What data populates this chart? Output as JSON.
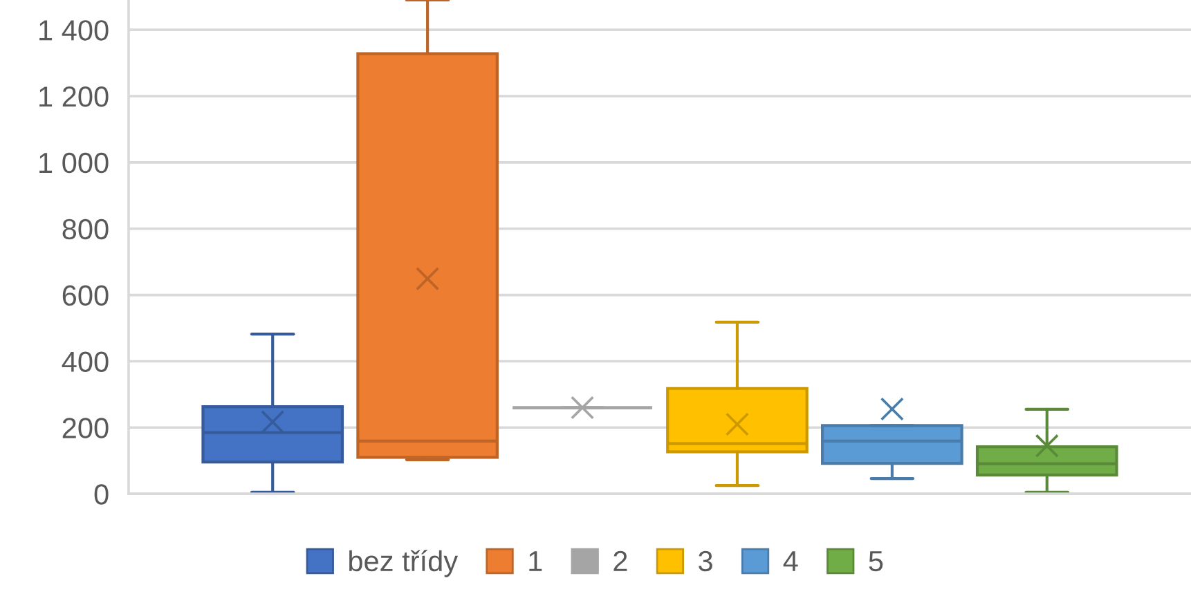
{
  "chart_data": {
    "type": "box",
    "categories": [
      null
    ],
    "series": [
      {
        "name": "bez třídy",
        "color": "#4472c4",
        "boxes": [
          {
            "low": 5,
            "q1": 96,
            "median": 185,
            "q3": 263,
            "high": 482,
            "mean": 217
          }
        ]
      },
      {
        "name": "1",
        "color": "#ed7d31",
        "boxes": [
          {
            "low": 103,
            "q1": 110,
            "median": 159,
            "q3": 1328,
            "high": 1490,
            "mean": 649
          }
        ]
      },
      {
        "name": "2",
        "color": "#a5a5a5",
        "boxes": [
          {
            "low": 260,
            "q1": 260,
            "median": 260,
            "q3": 260,
            "high": 260,
            "mean": 260
          }
        ]
      },
      {
        "name": "3",
        "color": "#ffc000",
        "boxes": [
          {
            "low": 25,
            "q1": 127,
            "median": 152,
            "q3": 318,
            "high": 518,
            "mean": 210
          }
        ]
      },
      {
        "name": "4",
        "color": "#5b9bd5",
        "boxes": [
          {
            "low": 46,
            "q1": 92,
            "median": 159,
            "q3": 206,
            "high": 206,
            "mean": 256
          }
        ]
      },
      {
        "name": "5",
        "color": "#70ad47",
        "boxes": [
          {
            "low": 5,
            "q1": 57,
            "median": 91,
            "q3": 142,
            "high": 255,
            "mean": 145
          }
        ]
      }
    ],
    "ylim": [
      0,
      1490
    ],
    "yticks": [
      0,
      200,
      400,
      600,
      800,
      {
        "value": 1000,
        "label": "1 000"
      },
      {
        "value": 1200,
        "label": "1 200"
      },
      {
        "value": 1400,
        "label": "1 400"
      }
    ],
    "grid": "y",
    "legend": "bottom",
    "tick_labels": "y",
    "marker": "cross"
  }
}
